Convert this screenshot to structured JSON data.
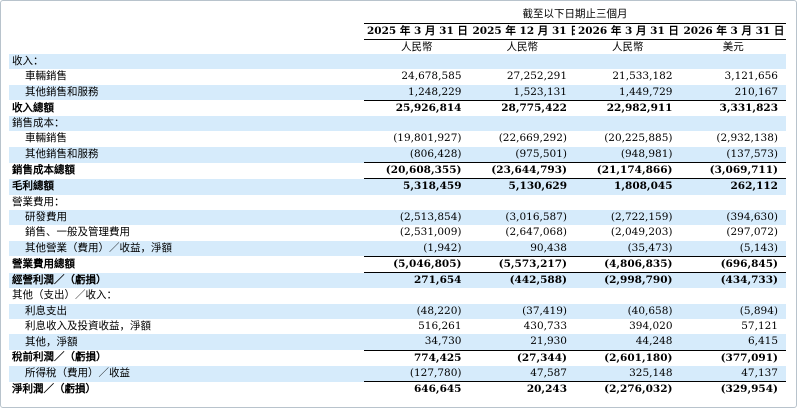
{
  "header": {
    "period_caption": "截至以下日期止三個月",
    "columns": [
      {
        "date": "2025 年 3 月 31 日",
        "currency": "人民幣"
      },
      {
        "date": "2025 年 12 月 31 日",
        "currency": "人民幣"
      },
      {
        "date": "2026 年 3 月 31 日",
        "currency": "人民幣"
      },
      {
        "date": "2026 年 3 月 31 日",
        "currency": "美元"
      }
    ]
  },
  "rows": [
    {
      "label": "收入：",
      "type": "section",
      "shade": true,
      "values": [
        "",
        "",
        "",
        ""
      ]
    },
    {
      "label": "車輛銷售",
      "type": "item",
      "shade": false,
      "values": [
        "24,678,585",
        "27,252,291",
        "21,533,182",
        "3,121,656"
      ]
    },
    {
      "label": "其他銷售和服務",
      "type": "item",
      "shade": true,
      "values": [
        "1,248,229",
        "1,523,131",
        "1,449,729",
        "210,167"
      ]
    },
    {
      "label": "收入總額",
      "type": "total",
      "shade": false,
      "values": [
        "25,926,814",
        "28,775,422",
        "22,982,911",
        "3,331,823"
      ]
    },
    {
      "label": "銷售成本：",
      "type": "section",
      "shade": true,
      "values": [
        "",
        "",
        "",
        ""
      ]
    },
    {
      "label": "車輛銷售",
      "type": "item",
      "shade": false,
      "values": [
        "(19,801,927)",
        "(22,669,292)",
        "(20,225,885)",
        "(2,932,138)"
      ]
    },
    {
      "label": "其他銷售和服務",
      "type": "item",
      "shade": true,
      "values": [
        "(806,428)",
        "(975,501)",
        "(948,981)",
        "(137,573)"
      ]
    },
    {
      "label": "銷售成本總額",
      "type": "total",
      "shade": false,
      "values": [
        "(20,608,355)",
        "(23,644,793)",
        "(21,174,866)",
        "(3,069,711)"
      ]
    },
    {
      "label": "毛利總額",
      "type": "total",
      "shade": true,
      "values": [
        "5,318,459",
        "5,130,629",
        "1,808,045",
        "262,112"
      ]
    },
    {
      "label": "營業費用：",
      "type": "section",
      "shade": false,
      "values": [
        "",
        "",
        "",
        ""
      ]
    },
    {
      "label": "研發費用",
      "type": "item",
      "shade": true,
      "values": [
        "(2,513,854)",
        "(3,016,587)",
        "(2,722,159)",
        "(394,630)"
      ]
    },
    {
      "label": "銷售、一般及管理費用",
      "type": "item",
      "shade": false,
      "values": [
        "(2,531,009)",
        "(2,647,068)",
        "(2,049,203)",
        "(297,072)"
      ]
    },
    {
      "label": "其他營業（費用）／收益，淨額",
      "type": "item",
      "shade": true,
      "values": [
        "(1,942)",
        "90,438",
        "(35,473)",
        "(5,143)"
      ]
    },
    {
      "label": "營業費用總額",
      "type": "total",
      "shade": false,
      "values": [
        "(5,046,805)",
        "(5,573,217)",
        "(4,806,835)",
        "(696,845)"
      ]
    },
    {
      "label": "經營利潤／（虧損）",
      "type": "total",
      "shade": true,
      "values": [
        "271,654",
        "(442,588)",
        "(2,998,790)",
        "(434,733)"
      ]
    },
    {
      "label": "其他（支出）／收入：",
      "type": "section",
      "shade": false,
      "values": [
        "",
        "",
        "",
        ""
      ]
    },
    {
      "label": "利息支出",
      "type": "item",
      "shade": true,
      "values": [
        "(48,220)",
        "(37,419)",
        "(40,658)",
        "(5,894)"
      ]
    },
    {
      "label": "利息收入及投資收益，淨額",
      "type": "item",
      "shade": false,
      "values": [
        "516,261",
        "430,733",
        "394,020",
        "57,121"
      ]
    },
    {
      "label": "其他，淨額",
      "type": "item",
      "shade": true,
      "values": [
        "34,730",
        "21,930",
        "44,248",
        "6,415"
      ]
    },
    {
      "label": "稅前利潤／（虧損）",
      "type": "total",
      "shade": false,
      "values": [
        "774,425",
        "(27,344)",
        "(2,601,180)",
        "(377,091)"
      ]
    },
    {
      "label": "所得稅（費用）／收益",
      "type": "item",
      "shade": true,
      "values": [
        "(127,780)",
        "47,587",
        "325,148",
        "47,137"
      ]
    },
    {
      "label": "淨利潤／（虧損）",
      "type": "total",
      "shade": false,
      "values": [
        "646,645",
        "20,243",
        "(2,276,032)",
        "(329,954)"
      ]
    }
  ]
}
